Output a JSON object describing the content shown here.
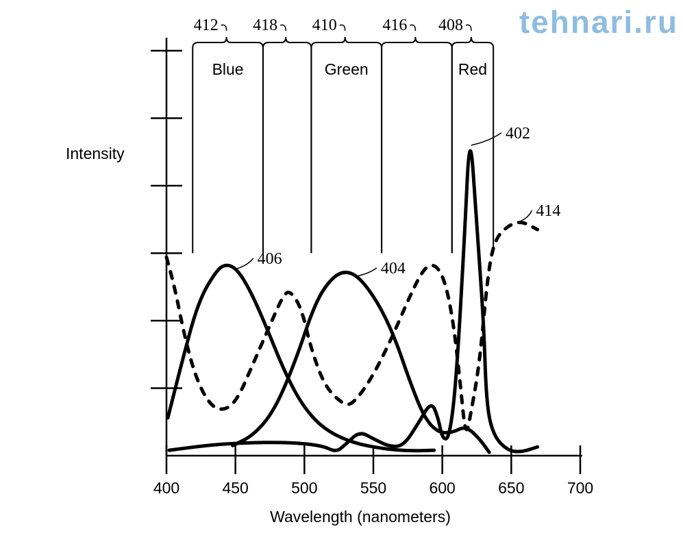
{
  "chart_data": {
    "type": "line",
    "xlabel": "Wavelength (nanometers)",
    "ylabel": "Intensity",
    "xlim": [
      400,
      700
    ],
    "ylim": [
      0,
      6
    ],
    "x_ticks": [
      "400",
      "450",
      "500",
      "550",
      "600",
      "650",
      "700"
    ],
    "y_tick_values": [
      1,
      2,
      3,
      4,
      5,
      6
    ],
    "y_tick_labels_shown": false,
    "grid": false,
    "series": [
      {
        "name": "406",
        "style": "solid",
        "color": "#000000",
        "points": [
          [
            401,
            0.56
          ],
          [
            411,
            1.37
          ],
          [
            423,
            2.28
          ],
          [
            436,
            2.74
          ],
          [
            443,
            2.84
          ],
          [
            451,
            2.77
          ],
          [
            461,
            2.44
          ],
          [
            473,
            1.88
          ],
          [
            485,
            1.27
          ],
          [
            498,
            0.76
          ],
          [
            513,
            0.41
          ],
          [
            533,
            0.2
          ],
          [
            557,
            0.1
          ],
          [
            577,
            0.07
          ],
          [
            594,
            0.08
          ]
        ]
      },
      {
        "name": "404",
        "style": "solid",
        "color": "#000000",
        "points": [
          [
            448,
            0.15
          ],
          [
            463,
            0.3
          ],
          [
            478,
            0.66
          ],
          [
            493,
            1.37
          ],
          [
            508,
            2.28
          ],
          [
            520,
            2.64
          ],
          [
            530,
            2.74
          ],
          [
            540,
            2.64
          ],
          [
            553,
            2.28
          ],
          [
            565,
            1.78
          ],
          [
            577,
            1.07
          ],
          [
            587,
            0.56
          ],
          [
            597,
            0.34
          ],
          [
            607,
            0.34
          ],
          [
            617,
            0.44
          ],
          [
            627,
            0.25
          ],
          [
            634,
            0.05
          ]
        ]
      },
      {
        "name": "402",
        "style": "solid",
        "color": "#000000",
        "points": [
          [
            402,
            0.08
          ],
          [
            428,
            0.15
          ],
          [
            453,
            0.19
          ],
          [
            488,
            0.2
          ],
          [
            513,
            0.15
          ],
          [
            523,
            0.05
          ],
          [
            530,
            0.17
          ],
          [
            540,
            0.36
          ],
          [
            550,
            0.25
          ],
          [
            562,
            0.13
          ],
          [
            572,
            0.15
          ],
          [
            582,
            0.46
          ],
          [
            592,
            0.81
          ],
          [
            597,
            0.56
          ],
          [
            600,
            0.25
          ],
          [
            605,
            0.25
          ],
          [
            610,
            1.07
          ],
          [
            616,
            3.2
          ],
          [
            620,
            4.92
          ],
          [
            625,
            3.4
          ],
          [
            630,
            1.98
          ],
          [
            632,
            0.76
          ],
          [
            637,
            0.3
          ],
          [
            647,
            0.08
          ],
          [
            657,
            0.05
          ],
          [
            669,
            0.13
          ]
        ]
      },
      {
        "name": "414",
        "style": "dashed",
        "color": "#000000",
        "points": [
          [
            400,
            2.94
          ],
          [
            406,
            2.49
          ],
          [
            413,
            1.78
          ],
          [
            421,
            1.17
          ],
          [
            431,
            0.76
          ],
          [
            441,
            0.66
          ],
          [
            451,
            0.81
          ],
          [
            463,
            1.37
          ],
          [
            476,
            1.98
          ],
          [
            485,
            2.39
          ],
          [
            490,
            2.44
          ],
          [
            498,
            2.18
          ],
          [
            505,
            1.57
          ],
          [
            515,
            1.02
          ],
          [
            528,
            0.76
          ],
          [
            535,
            0.76
          ],
          [
            548,
            1.12
          ],
          [
            562,
            1.68
          ],
          [
            577,
            2.39
          ],
          [
            587,
            2.79
          ],
          [
            595,
            2.84
          ],
          [
            602,
            2.59
          ],
          [
            608,
            1.98
          ],
          [
            613,
            1.07
          ],
          [
            617,
            0.25
          ],
          [
            621,
            0.66
          ],
          [
            627,
            1.37
          ],
          [
            633,
            2.69
          ],
          [
            638,
            3.2
          ],
          [
            647,
            3.4
          ],
          [
            657,
            3.48
          ],
          [
            669,
            3.35
          ]
        ]
      }
    ],
    "series_label_anchors": [
      {
        "label": "406",
        "at": [
          451,
          2.77
        ]
      },
      {
        "label": "404",
        "at": [
          538,
          2.66
        ]
      },
      {
        "label": "402",
        "at": [
          621,
          4.6
        ]
      },
      {
        "label": "414",
        "at": [
          657,
          3.48
        ]
      }
    ],
    "bands": [
      {
        "ref": "412",
        "name": "Blue",
        "range": [
          419,
          470
        ]
      },
      {
        "ref": "418",
        "name": "",
        "range": [
          470,
          505
        ]
      },
      {
        "ref": "410",
        "name": "Green",
        "range": [
          505,
          556
        ]
      },
      {
        "ref": "416",
        "name": "",
        "range": [
          556,
          607
        ]
      },
      {
        "ref": "408",
        "name": "Red",
        "range": [
          607,
          637
        ]
      }
    ]
  },
  "watermark": {
    "text": "tehnari.ru",
    "color": "#8fbde0"
  }
}
